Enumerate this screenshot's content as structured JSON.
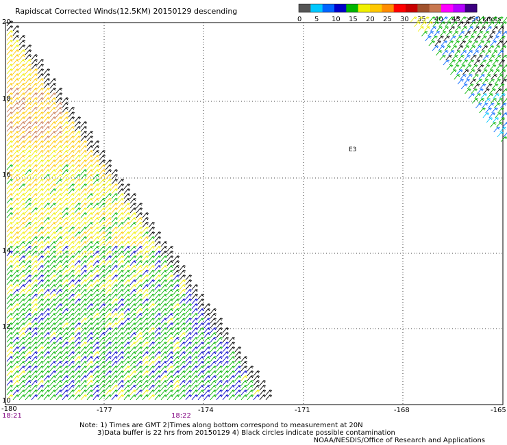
{
  "title": "Rapidscat Corrected Winds(12.5KM) 20150129 descending",
  "colorbar": {
    "labels": [
      "0",
      "5",
      "10",
      "15",
      "20",
      "25",
      "30",
      "35",
      "40",
      "45",
      ">50 knots"
    ],
    "colors": [
      "#555555",
      "#00c8ff",
      "#0064ff",
      "#0000c8",
      "#00b400",
      "#f0f000",
      "#ffc800",
      "#ff8c00",
      "#ff0000",
      "#c80000",
      "#a0522d",
      "#c87850",
      "#ff00ff",
      "#b400ff",
      "#3c0080"
    ]
  },
  "axes": {
    "lon_labels": [
      "-180",
      "-177",
      "-174",
      "-171",
      "-168",
      "-165"
    ],
    "lat_labels": [
      "20",
      "18",
      "16",
      "14",
      "12",
      "10"
    ]
  },
  "times": [
    "18:21",
    "18:22"
  ],
  "marker_label": "E3",
  "notes": [
    "Note: 1) Times are GMT 2)Times along bottom correspond to measurement at 20N",
    "3)Data buffer is 22 hrs from 20150129 4) Black circles indicate possible contamination"
  ],
  "credit": "NOAA/NESDIS/Office of Research and Applications"
}
